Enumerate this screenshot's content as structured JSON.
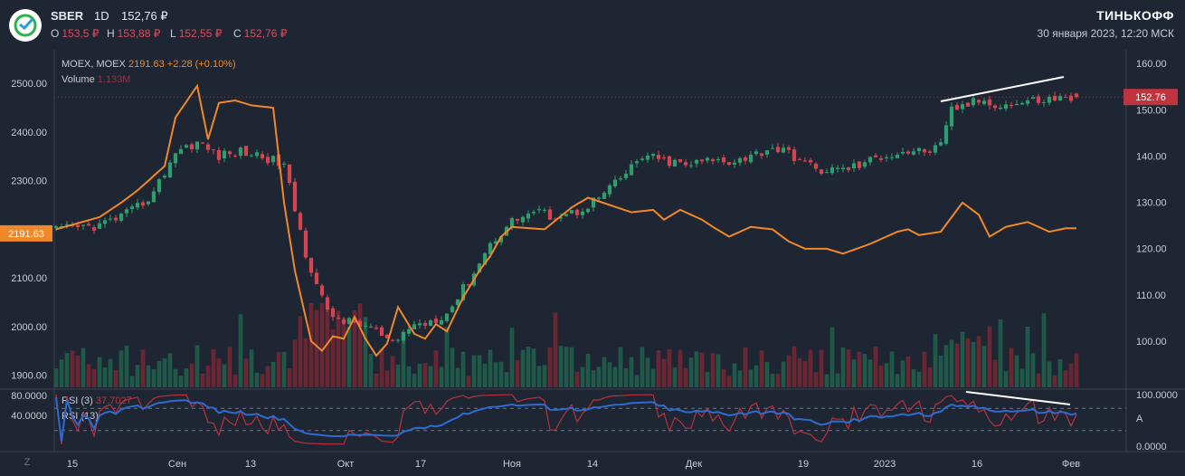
{
  "header": {
    "ticker": "SBER",
    "timeframe": "1D",
    "price": "152,76 ₽",
    "ohlc": [
      {
        "k": "O",
        "v": "153,5 ₽"
      },
      {
        "k": "H",
        "v": "153,88 ₽"
      },
      {
        "k": "L",
        "v": "152,55 ₽"
      },
      {
        "k": "C",
        "v": "152,76 ₽"
      }
    ],
    "brand": "ТИНЬКОФФ",
    "datetime": "30 января 2023, 12:20 МСК"
  },
  "legend": {
    "moex_name": "MOEX, MOEX",
    "moex_value": "2191.63",
    "moex_change": "+2.28 (+0.10%)",
    "volume_name": "Volume",
    "volume_value": "1.133M",
    "rsi3_name": "RSI (3)",
    "rsi3_value": "37.7027",
    "rsi13_name": "RSI (13)"
  },
  "colors": {
    "background": "#1e2633",
    "up": "#2e9e6e",
    "down": "#d6454f",
    "moex_line": "#f0882a",
    "rsi3_line": "#b8323d",
    "rsi13_line": "#2f6ad0",
    "trend_line": "#ffffff",
    "price_badge": "#c0343f",
    "moex_badge": "#f0882a"
  },
  "chart_data": {
    "type": "candlestick",
    "x_ticks": [
      "15",
      "Сен",
      "13",
      "Окт",
      "17",
      "Ноя",
      "14",
      "Дек",
      "19",
      "2023",
      "16",
      "Фев"
    ],
    "left_axis": {
      "label_ticks": [
        "2500.00",
        "2400.00",
        "2300.00",
        "2200.00",
        "2100.00",
        "2000.00",
        "1900.00"
      ],
      "range": [
        1875,
        2560
      ],
      "current_badge": "2191.63"
    },
    "right_axis": {
      "label_ticks": [
        "160.00",
        "150.00",
        "140.00",
        "130.00",
        "120.00",
        "110.00",
        "100.00"
      ],
      "range": [
        90,
        162
      ],
      "current_badge": "152.76"
    },
    "rsi_left_ticks": [
      "80.0000",
      "40.0000"
    ],
    "rsi_right_ticks": [
      "100.0000",
      "A",
      "0.0000"
    ],
    "bottom_left_label": "Z",
    "sber_close_anchors": [
      [
        0,
        124
      ],
      [
        8,
        125
      ],
      [
        14,
        128
      ],
      [
        18,
        132
      ],
      [
        22,
        141
      ],
      [
        26,
        143
      ],
      [
        30,
        140
      ],
      [
        34,
        141
      ],
      [
        38,
        140
      ],
      [
        42,
        138
      ],
      [
        46,
        119
      ],
      [
        50,
        106
      ],
      [
        54,
        104
      ],
      [
        58,
        103
      ],
      [
        62,
        99
      ],
      [
        65,
        103
      ],
      [
        68,
        104
      ],
      [
        72,
        106
      ],
      [
        76,
        113
      ],
      [
        80,
        121
      ],
      [
        84,
        126
      ],
      [
        88,
        128
      ],
      [
        92,
        127
      ],
      [
        96,
        128
      ],
      [
        100,
        131
      ],
      [
        104,
        135
      ],
      [
        108,
        140
      ],
      [
        112,
        139
      ],
      [
        116,
        138
      ],
      [
        120,
        139
      ],
      [
        124,
        139
      ],
      [
        128,
        140
      ],
      [
        132,
        142
      ],
      [
        136,
        140
      ],
      [
        140,
        137
      ],
      [
        144,
        137
      ],
      [
        148,
        138
      ],
      [
        152,
        140
      ],
      [
        156,
        141
      ],
      [
        160,
        141
      ],
      [
        163,
        142
      ],
      [
        165,
        150
      ],
      [
        170,
        152
      ],
      [
        175,
        151
      ],
      [
        180,
        152
      ],
      [
        185,
        152.5
      ],
      [
        188,
        152.76
      ]
    ],
    "moex_anchors": [
      [
        0,
        2200
      ],
      [
        8,
        2225
      ],
      [
        12,
        2255
      ],
      [
        15,
        2280
      ],
      [
        20,
        2330
      ],
      [
        22,
        2430
      ],
      [
        26,
        2495
      ],
      [
        28,
        2385
      ],
      [
        30,
        2460
      ],
      [
        33,
        2465
      ],
      [
        36,
        2455
      ],
      [
        40,
        2450
      ],
      [
        42,
        2255
      ],
      [
        44,
        2115
      ],
      [
        47,
        1970
      ],
      [
        49,
        1950
      ],
      [
        51,
        1980
      ],
      [
        53,
        1975
      ],
      [
        55,
        2020
      ],
      [
        57,
        1975
      ],
      [
        59,
        1940
      ],
      [
        61,
        1965
      ],
      [
        63,
        2040
      ],
      [
        66,
        1985
      ],
      [
        68,
        1975
      ],
      [
        70,
        2005
      ],
      [
        72,
        1990
      ],
      [
        75,
        2060
      ],
      [
        78,
        2115
      ],
      [
        80,
        2145
      ],
      [
        82,
        2185
      ],
      [
        84,
        2205
      ],
      [
        90,
        2200
      ],
      [
        95,
        2245
      ],
      [
        98,
        2265
      ],
      [
        102,
        2250
      ],
      [
        106,
        2235
      ],
      [
        110,
        2240
      ],
      [
        112,
        2220
      ],
      [
        115,
        2240
      ],
      [
        119,
        2220
      ],
      [
        121,
        2205
      ],
      [
        124,
        2185
      ],
      [
        128,
        2205
      ],
      [
        132,
        2200
      ],
      [
        135,
        2175
      ],
      [
        138,
        2160
      ],
      [
        142,
        2160
      ],
      [
        145,
        2150
      ],
      [
        150,
        2170
      ],
      [
        155,
        2195
      ],
      [
        157,
        2200
      ],
      [
        159,
        2188
      ],
      [
        163,
        2195
      ],
      [
        167,
        2255
      ],
      [
        170,
        2230
      ],
      [
        172,
        2185
      ],
      [
        175,
        2205
      ],
      [
        179,
        2215
      ],
      [
        183,
        2195
      ],
      [
        186,
        2202
      ]
    ],
    "volume_range": [
      0,
      60
    ],
    "rsi_range": [
      0,
      100
    ]
  }
}
